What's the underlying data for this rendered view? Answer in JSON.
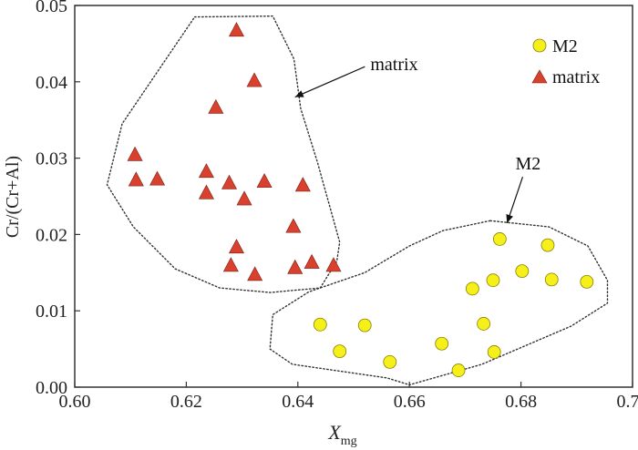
{
  "chart_data": {
    "type": "scatter",
    "xlabel_main": "X",
    "xlabel_sub": "mg",
    "ylabel": "Cr/(Cr+Al)",
    "xlim": [
      0.6,
      0.7
    ],
    "ylim": [
      0.0,
      0.05
    ],
    "x_ticks": [
      "0.60",
      "0.62",
      "0.64",
      "0.66",
      "0.68",
      "0.70"
    ],
    "y_ticks": [
      "0.00",
      "0.01",
      "0.02",
      "0.03",
      "0.04",
      "0.05"
    ],
    "grid": false,
    "legend_position": "top-right",
    "series": [
      {
        "name": "M2",
        "marker": "circle",
        "color": "#f5ef1a",
        "points": [
          [
            0.644,
            0.0082
          ],
          [
            0.6475,
            0.0047
          ],
          [
            0.652,
            0.0081
          ],
          [
            0.6565,
            0.0033
          ],
          [
            0.6658,
            0.0057
          ],
          [
            0.6688,
            0.0022
          ],
          [
            0.6713,
            0.0129
          ],
          [
            0.6733,
            0.0083
          ],
          [
            0.675,
            0.014
          ],
          [
            0.6752,
            0.0046
          ],
          [
            0.6762,
            0.0194
          ],
          [
            0.6802,
            0.0152
          ],
          [
            0.6848,
            0.0186
          ],
          [
            0.6855,
            0.0141
          ],
          [
            0.6918,
            0.0138
          ]
        ]
      },
      {
        "name": "matrix",
        "marker": "triangle",
        "color": "#d9412e",
        "points": [
          [
            0.629,
            0.0468
          ],
          [
            0.6322,
            0.0402
          ],
          [
            0.6253,
            0.0367
          ],
          [
            0.6108,
            0.0305
          ],
          [
            0.611,
            0.0272
          ],
          [
            0.6148,
            0.0273
          ],
          [
            0.6236,
            0.0283
          ],
          [
            0.6236,
            0.0255
          ],
          [
            0.6277,
            0.0268
          ],
          [
            0.6304,
            0.0247
          ],
          [
            0.634,
            0.027
          ],
          [
            0.6409,
            0.0265
          ],
          [
            0.6392,
            0.0211
          ],
          [
            0.629,
            0.0184
          ],
          [
            0.628,
            0.016
          ],
          [
            0.6323,
            0.0148
          ],
          [
            0.6395,
            0.0157
          ],
          [
            0.6425,
            0.0164
          ],
          [
            0.6464,
            0.016
          ]
        ]
      }
    ],
    "regions": [
      {
        "label": "matrix",
        "outline": [
          [
            0.6215,
            0.0485
          ],
          [
            0.6355,
            0.0486
          ],
          [
            0.6393,
            0.043
          ],
          [
            0.6405,
            0.0365
          ],
          [
            0.6435,
            0.0295
          ],
          [
            0.6475,
            0.019
          ],
          [
            0.647,
            0.0165
          ],
          [
            0.644,
            0.013
          ],
          [
            0.635,
            0.0124
          ],
          [
            0.626,
            0.013
          ],
          [
            0.618,
            0.0155
          ],
          [
            0.6105,
            0.021
          ],
          [
            0.6058,
            0.0265
          ],
          [
            0.6085,
            0.0345
          ],
          [
            0.615,
            0.0415
          ]
        ]
      },
      {
        "label": "M2",
        "outline": [
          [
            0.6745,
            0.0218
          ],
          [
            0.685,
            0.021
          ],
          [
            0.692,
            0.0185
          ],
          [
            0.6955,
            0.014
          ],
          [
            0.6955,
            0.011
          ],
          [
            0.689,
            0.008
          ],
          [
            0.673,
            0.003
          ],
          [
            0.66,
            0.0003
          ],
          [
            0.656,
            0.0012
          ],
          [
            0.639,
            0.003
          ],
          [
            0.635,
            0.005
          ],
          [
            0.6355,
            0.0095
          ],
          [
            0.642,
            0.0125
          ],
          [
            0.652,
            0.015
          ],
          [
            0.66,
            0.0185
          ],
          [
            0.666,
            0.0205
          ]
        ]
      }
    ],
    "annotations": [
      {
        "text": "matrix",
        "text_at": [
          0.653,
          0.0415
        ],
        "arrow_to": [
          0.6395,
          0.038
        ]
      },
      {
        "text": "M2",
        "text_at": [
          0.679,
          0.0285
        ],
        "arrow_to": [
          0.6775,
          0.0215
        ]
      }
    ]
  }
}
